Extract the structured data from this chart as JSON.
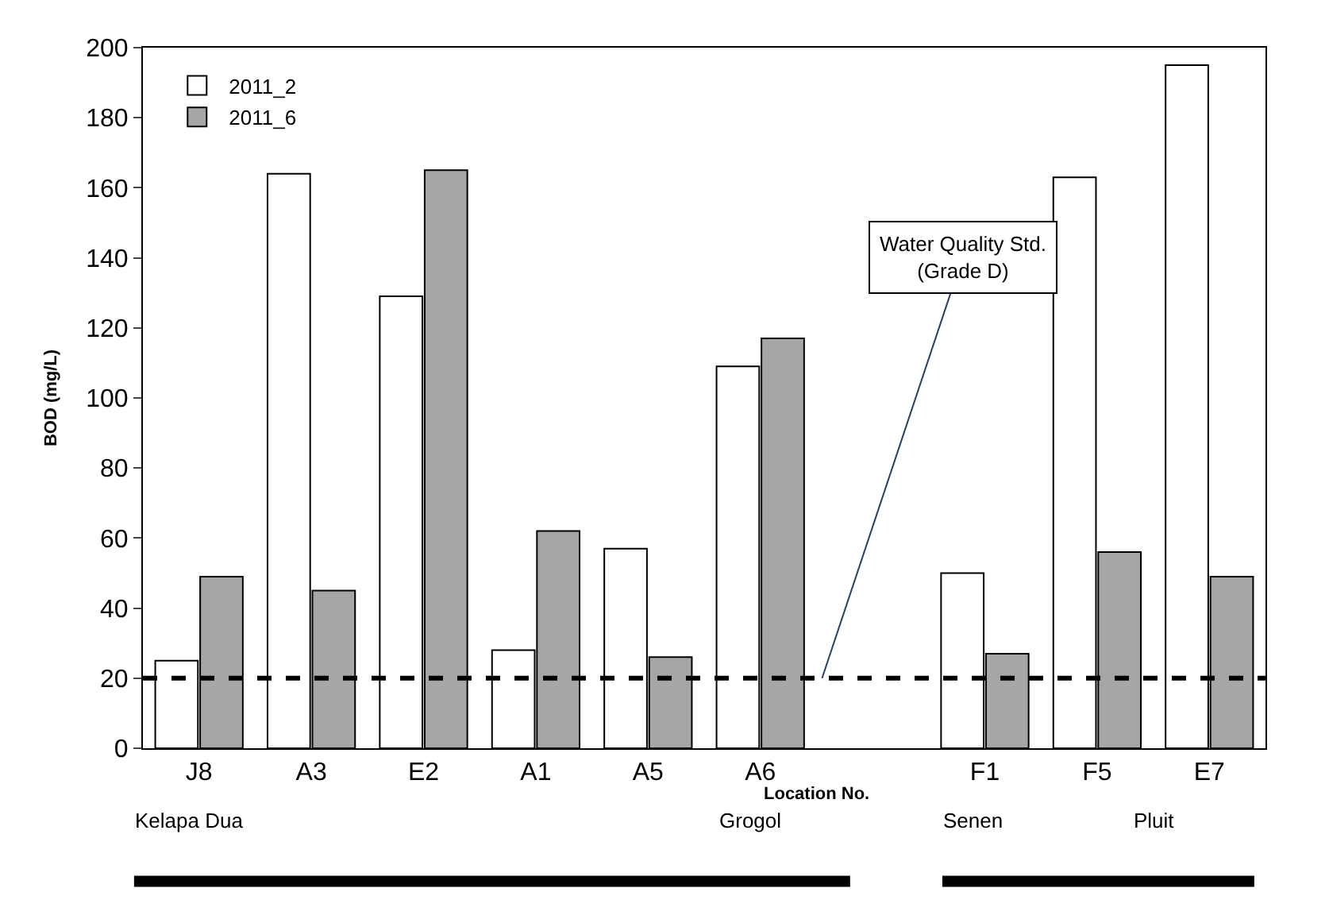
{
  "chart_data": {
    "type": "bar",
    "ylabel": "BOD (mg/L)",
    "xlabel": "Location No.",
    "categories": [
      "J8",
      "A3",
      "E2",
      "A1",
      "A5",
      "A6",
      null,
      "F1",
      "F5",
      "E7"
    ],
    "series": [
      {
        "name": "2011_2",
        "color": "#ffffff",
        "values": [
          25,
          164,
          129,
          28,
          57,
          109,
          null,
          50,
          163,
          195
        ]
      },
      {
        "name": "2011_6",
        "color": "#a6a6a6",
        "values": [
          49,
          45,
          165,
          62,
          26,
          117,
          null,
          27,
          56,
          49
        ]
      }
    ],
    "ylim": [
      0,
      200
    ],
    "yticks": [
      0,
      20,
      40,
      60,
      80,
      100,
      120,
      140,
      160,
      180,
      200
    ],
    "grid": false,
    "legend": "top left",
    "ref_lines": [
      {
        "axis": "y",
        "value": 20,
        "label": "Water Quality Std.\n(Grade D)",
        "color": "#000000",
        "line_style": "dashed"
      }
    ],
    "annotations": [
      "Kelapa Dua",
      "Grogol",
      "Senen",
      "Pluit"
    ]
  }
}
